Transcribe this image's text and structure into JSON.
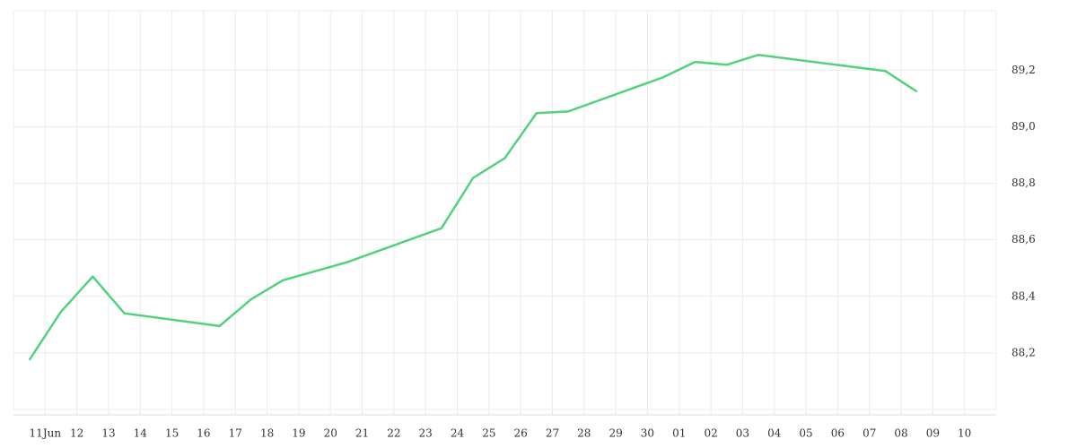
{
  "chart_data": {
    "type": "line",
    "x": [
      -0.5,
      0.5,
      1.5,
      2.5,
      5.5,
      6.5,
      7.5,
      9.5,
      12.5,
      13.5,
      14.5,
      15.5,
      16.5,
      19.5,
      20.5,
      21.5,
      22.5,
      26.5,
      27.5
    ],
    "series": [
      {
        "color": "#52d27c",
        "values": [
          88.175,
          88.346,
          88.47,
          88.34,
          88.295,
          88.39,
          88.457,
          88.52,
          88.641,
          88.819,
          88.889,
          89.048,
          89.054,
          89.175,
          89.229,
          89.219,
          89.254,
          89.197,
          89.124
        ]
      }
    ],
    "xlim": [
      -1,
      30
    ],
    "xticks": [
      {
        "value": 0,
        "label": "11Jun"
      },
      {
        "value": 1,
        "label": "12"
      },
      {
        "value": 2,
        "label": "13"
      },
      {
        "value": 3,
        "label": "14"
      },
      {
        "value": 4,
        "label": "15"
      },
      {
        "value": 5,
        "label": "16"
      },
      {
        "value": 6,
        "label": "17"
      },
      {
        "value": 7,
        "label": "18"
      },
      {
        "value": 8,
        "label": "19"
      },
      {
        "value": 9,
        "label": "20"
      },
      {
        "value": 10,
        "label": "21"
      },
      {
        "value": 11,
        "label": "22"
      },
      {
        "value": 12,
        "label": "23"
      },
      {
        "value": 13,
        "label": "24"
      },
      {
        "value": 14,
        "label": "25"
      },
      {
        "value": 15,
        "label": "26"
      },
      {
        "value": 16,
        "label": "27"
      },
      {
        "value": 17,
        "label": "28"
      },
      {
        "value": 18,
        "label": "29"
      },
      {
        "value": 19,
        "label": "30"
      },
      {
        "value": 20,
        "label": "01"
      },
      {
        "value": 21,
        "label": "02"
      },
      {
        "value": 22,
        "label": "03"
      },
      {
        "value": 23,
        "label": "04"
      },
      {
        "value": 24,
        "label": "05"
      },
      {
        "value": 25,
        "label": "06"
      },
      {
        "value": 26,
        "label": "07"
      },
      {
        "value": 27,
        "label": "08"
      },
      {
        "value": 28,
        "label": "09"
      },
      {
        "value": 29,
        "label": "10"
      }
    ],
    "ylim": [
      88.0,
      89.41
    ],
    "yticks": [
      {
        "value": 88.2,
        "label": "88,2"
      },
      {
        "value": 88.4,
        "label": "88,4"
      },
      {
        "value": 88.6,
        "label": "88,6"
      },
      {
        "value": 88.8,
        "label": "88,8"
      },
      {
        "value": 89.0,
        "label": "89,0"
      },
      {
        "value": 89.2,
        "label": "89,2"
      }
    ],
    "grid": true
  }
}
